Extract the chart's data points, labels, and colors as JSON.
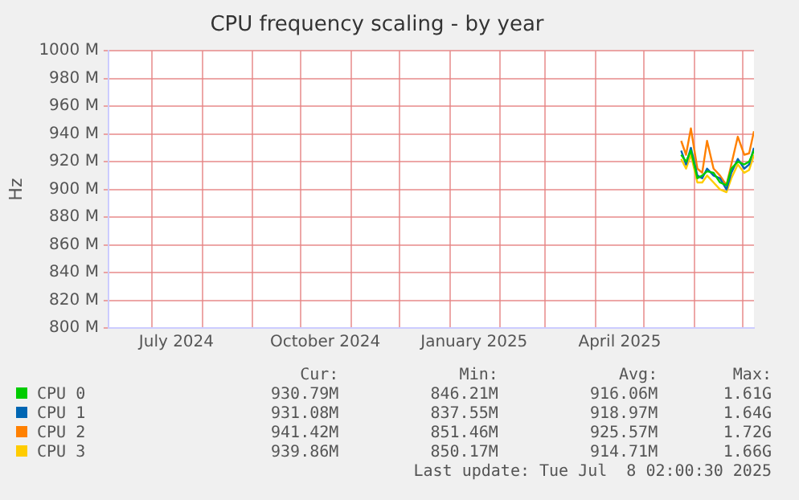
{
  "chart_data": {
    "type": "line",
    "title": "CPU frequency scaling - by year",
    "ylabel": "Hz",
    "x": [
      "2025-05-24",
      "2025-05-27",
      "2025-05-30",
      "2025-06-03",
      "2025-06-06",
      "2025-06-09",
      "2025-06-13",
      "2025-06-17",
      "2025-06-21",
      "2025-06-24",
      "2025-06-28",
      "2025-07-02",
      "2025-07-05",
      "2025-07-08"
    ],
    "series": [
      {
        "name": "CPU 0",
        "color": "#00cc00",
        "values": [
          925000000,
          920000000,
          928000000,
          908000000,
          910000000,
          913000000,
          912000000,
          905000000,
          903000000,
          915000000,
          920000000,
          918000000,
          920000000,
          928000000
        ]
      },
      {
        "name": "CPU 1",
        "color": "#0066b3",
        "values": [
          928000000,
          918000000,
          930000000,
          910000000,
          908000000,
          915000000,
          910000000,
          908000000,
          900000000,
          912000000,
          922000000,
          915000000,
          918000000,
          930000000
        ]
      },
      {
        "name": "CPU 2",
        "color": "#ff8000",
        "values": [
          935000000,
          925000000,
          944000000,
          915000000,
          912000000,
          935000000,
          915000000,
          910000000,
          903000000,
          918000000,
          938000000,
          925000000,
          926000000,
          942000000
        ]
      },
      {
        "name": "CPU 3",
        "color": "#ffcc00",
        "values": [
          922000000,
          915000000,
          925000000,
          905000000,
          905000000,
          910000000,
          905000000,
          900000000,
          898000000,
          908000000,
          918000000,
          912000000,
          914000000,
          925000000
        ]
      }
    ],
    "xlim": [
      "2024-06-04",
      "2025-07-08"
    ],
    "xticks": [
      {
        "value": "2024-07-01",
        "label": null
      },
      {
        "value": "2024-07-16",
        "label": "July 2024"
      },
      {
        "value": "2024-08-01",
        "label": null
      },
      {
        "value": "2024-09-01",
        "label": null
      },
      {
        "value": "2024-10-01",
        "label": null
      },
      {
        "value": "2024-10-16",
        "label": "October 2024"
      },
      {
        "value": "2024-11-01",
        "label": null
      },
      {
        "value": "2024-12-01",
        "label": null
      },
      {
        "value": "2025-01-01",
        "label": null
      },
      {
        "value": "2025-01-16",
        "label": "January 2025"
      },
      {
        "value": "2025-02-01",
        "label": null
      },
      {
        "value": "2025-03-01",
        "label": null
      },
      {
        "value": "2025-04-01",
        "label": null
      },
      {
        "value": "2025-04-16",
        "label": "April 2025"
      },
      {
        "value": "2025-05-01",
        "label": null
      },
      {
        "value": "2025-06-01",
        "label": null
      },
      {
        "value": "2025-07-01",
        "label": null
      }
    ],
    "ylim": [
      800000000,
      1000000000
    ],
    "yticks": [
      {
        "value": 800000000,
        "label": "800 M"
      },
      {
        "value": 820000000,
        "label": "820 M"
      },
      {
        "value": 840000000,
        "label": "840 M"
      },
      {
        "value": 860000000,
        "label": "860 M"
      },
      {
        "value": 880000000,
        "label": "880 M"
      },
      {
        "value": 900000000,
        "label": "900 M"
      },
      {
        "value": 920000000,
        "label": "920 M"
      },
      {
        "value": 940000000,
        "label": "940 M"
      },
      {
        "value": 960000000,
        "label": "960 M"
      },
      {
        "value": 980000000,
        "label": "980 M"
      },
      {
        "value": 1000000000,
        "label": "1000 M"
      }
    ],
    "grid": true,
    "legend": "bottom",
    "marker": "none",
    "line_style": "solid",
    "annotations": [
      "Cur:",
      "Min:",
      "Avg:",
      "Max:",
      "930.79M",
      "846.21M",
      "916.06M",
      "1.61G",
      "931.08M",
      "837.55M",
      "918.97M",
      "1.64G",
      "941.42M",
      "851.46M",
      "925.57M",
      "1.72G",
      "939.86M",
      "850.17M",
      "914.71M",
      "1.66G",
      "Last update: Tue Jul  8 02:00:30 2025"
    ]
  }
}
